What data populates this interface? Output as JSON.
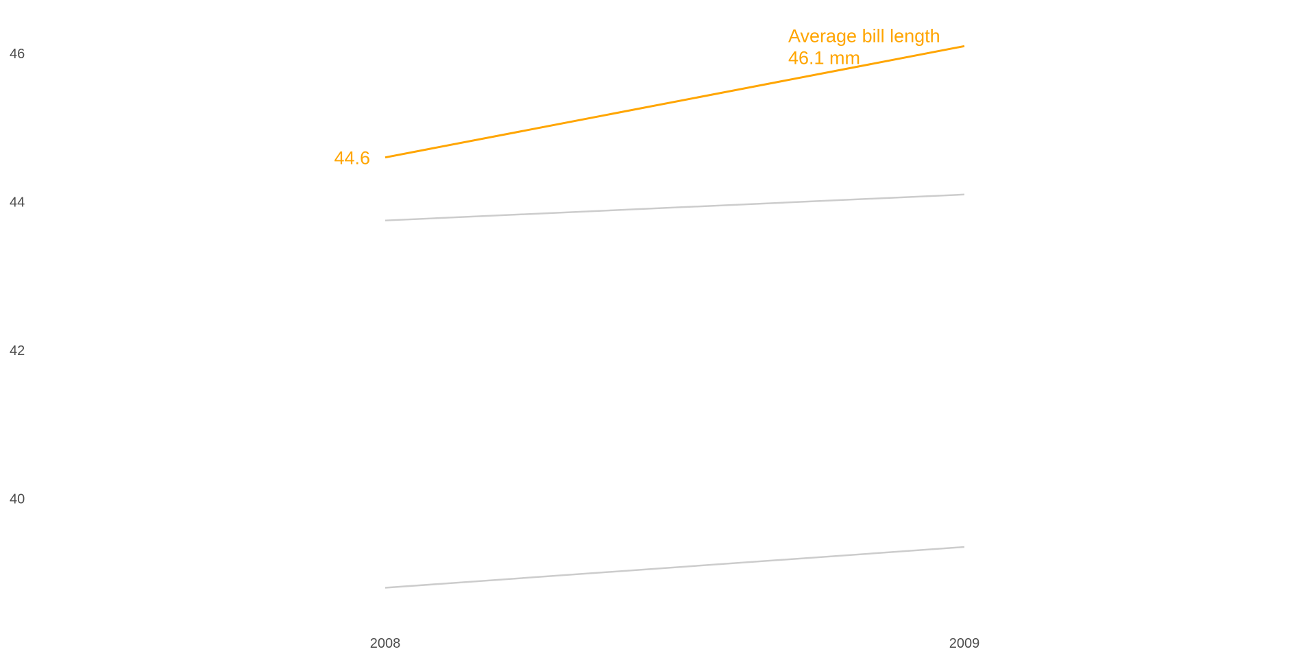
{
  "chart_data": {
    "type": "line",
    "x": [
      "2008",
      "2009"
    ],
    "series": [
      {
        "values": [
          44.6,
          46.1
        ],
        "color": "#FFA500",
        "highlight": true
      },
      {
        "values": [
          43.75,
          44.1
        ],
        "color": "#CCCCCC",
        "highlight": false
      },
      {
        "values": [
          38.8,
          39.35
        ],
        "color": "#CCCCCC",
        "highlight": false
      }
    ],
    "yticks": [
      "40",
      "42",
      "44",
      "46"
    ],
    "ylim": [
      38.5,
      46.5
    ],
    "grid": false,
    "annotations": {
      "start_value": "44.6",
      "end_title": "Average bill length",
      "end_value": "46.1 mm"
    }
  }
}
